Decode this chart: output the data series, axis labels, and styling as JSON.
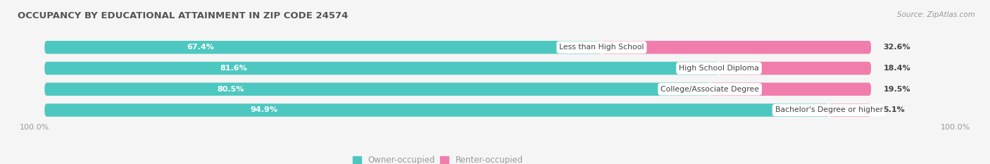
{
  "title": "OCCUPANCY BY EDUCATIONAL ATTAINMENT IN ZIP CODE 24574",
  "source": "Source: ZipAtlas.com",
  "categories": [
    "Less than High School",
    "High School Diploma",
    "College/Associate Degree",
    "Bachelor's Degree or higher"
  ],
  "owner_pct": [
    67.4,
    81.6,
    80.5,
    94.9
  ],
  "renter_pct": [
    32.6,
    18.4,
    19.5,
    5.1
  ],
  "owner_color": "#4DC8C0",
  "renter_color": "#F07DAC",
  "bg_color": "#f5f5f5",
  "bar_bg_color": "#e0e0e0",
  "label_color": "#ffffff",
  "category_label_color": "#444444",
  "axis_label_color": "#999999",
  "title_color": "#555555",
  "bar_height": 0.62,
  "left_pct_label": "100.0%",
  "right_pct_label": "100.0%",
  "legend_owner": "Owner-occupied",
  "legend_renter": "Renter-occupied"
}
